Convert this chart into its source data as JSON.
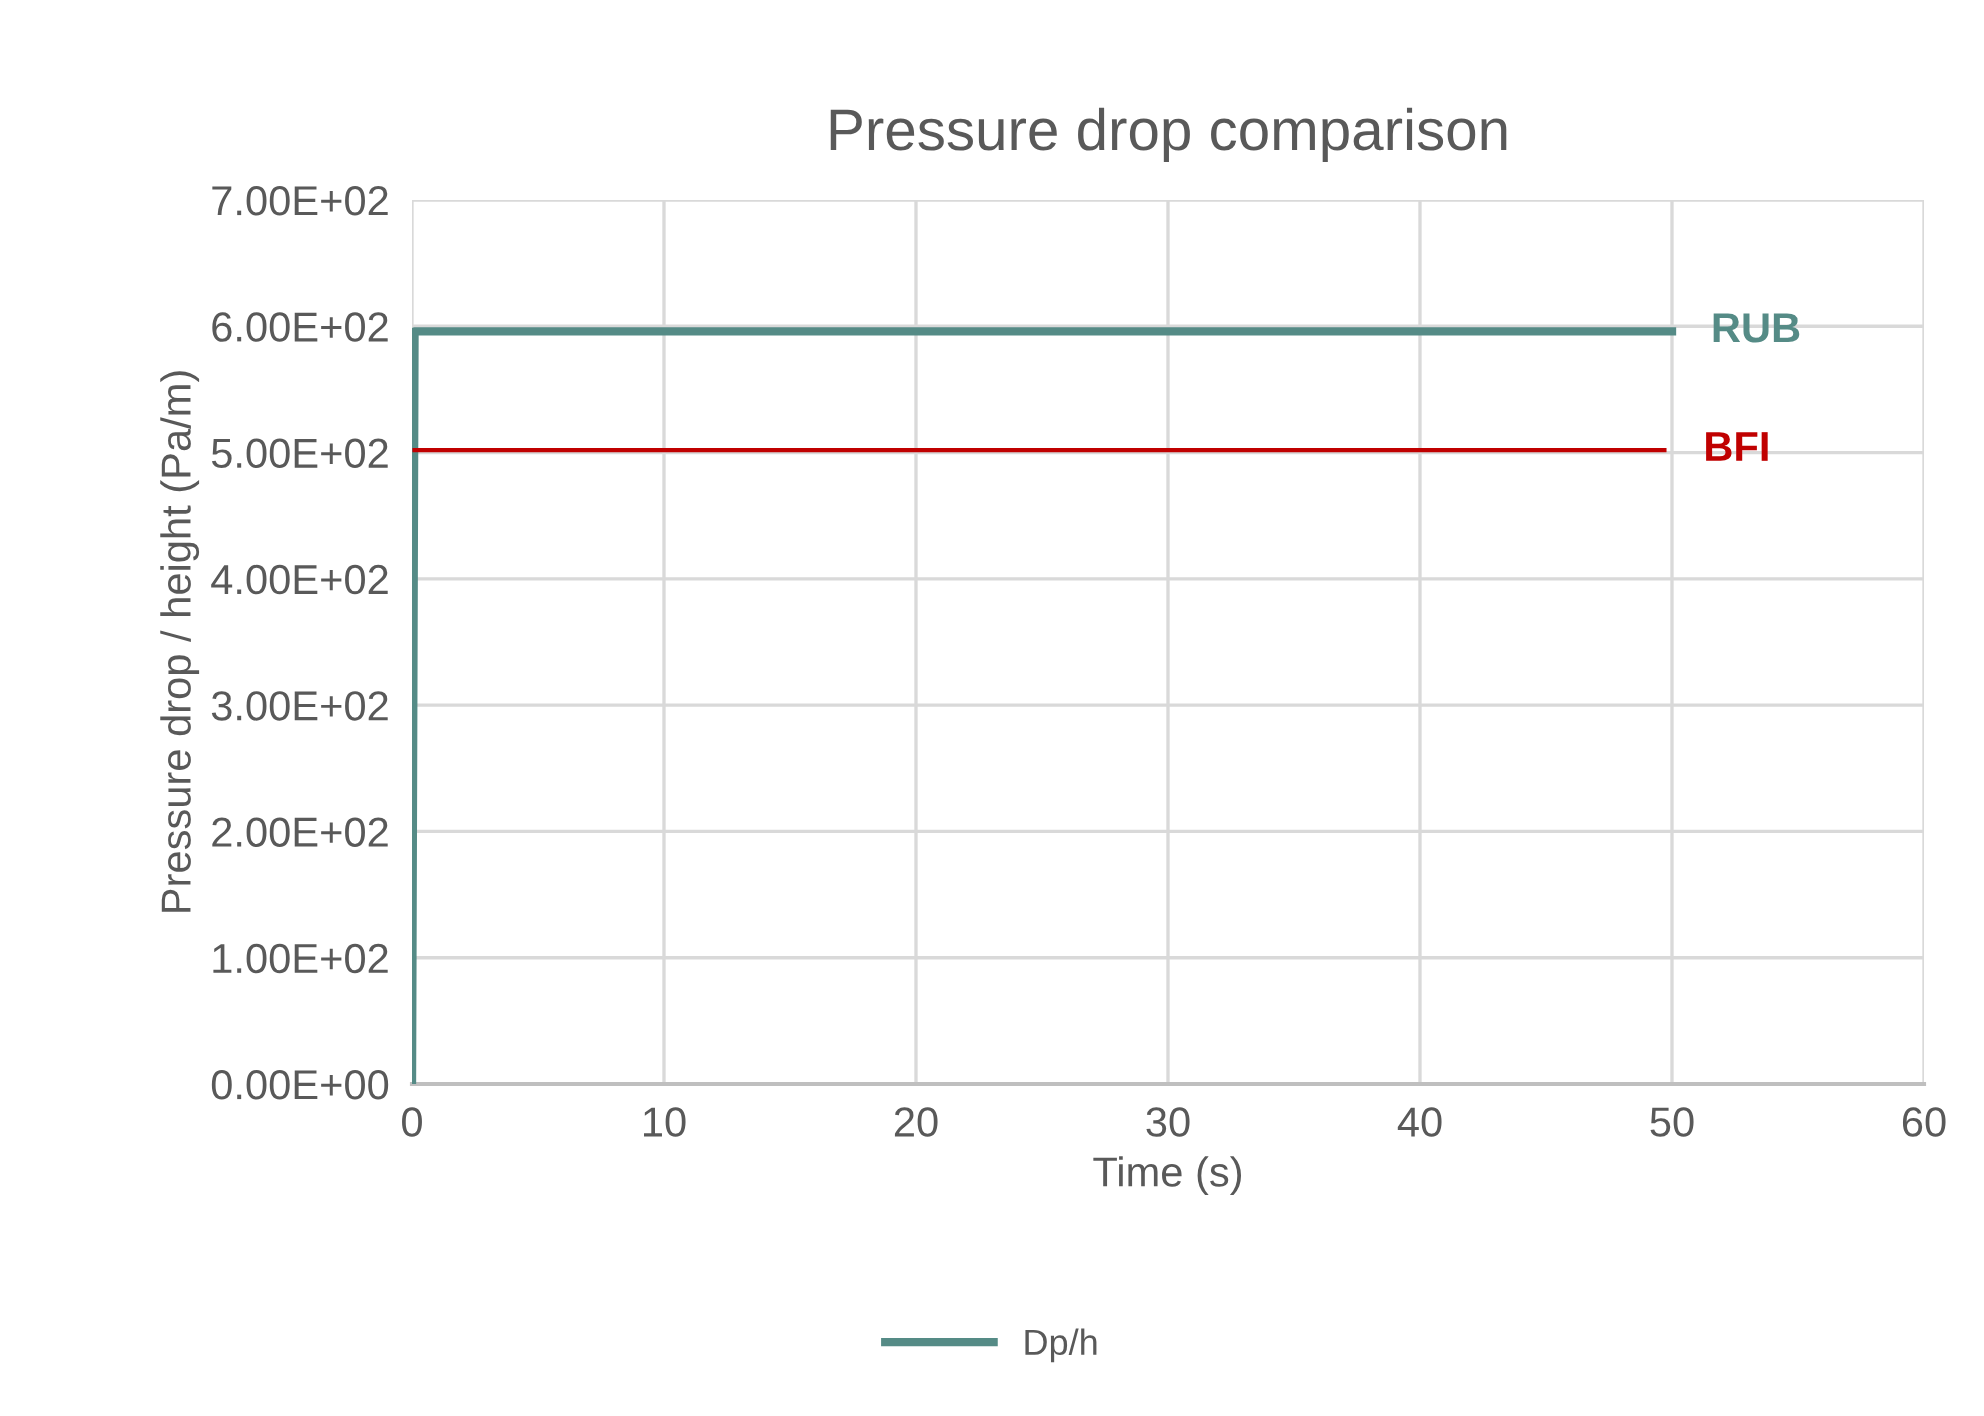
{
  "chart_data": {
    "type": "line",
    "title": "Pressure drop comparison",
    "xlabel": "Time (s)",
    "ylabel": "Pressure drop / height (Pa/m)",
    "series": [
      {
        "name": "Dp/h",
        "color": "#558b86",
        "x": [
          0,
          0.1,
          50
        ],
        "values": [
          0,
          596,
          596
        ]
      },
      {
        "color": "#c00000",
        "x": [
          0.1,
          49.7
        ],
        "values": [
          502,
          502
        ]
      }
    ],
    "annotations": [
      {
        "text": "RUB",
        "x": 50,
        "y": 596
      },
      {
        "text": "BFI",
        "x": 49.7,
        "y": 502
      }
    ],
    "xlim": [
      0,
      60
    ],
    "xticks": [
      0,
      10,
      20,
      30,
      40,
      50,
      60
    ],
    "ylim": [
      0,
      700
    ],
    "yticks": [
      {
        "value": 0,
        "label": "0.00E+00"
      },
      {
        "value": 100,
        "label": "1.00E+02"
      },
      {
        "value": 200,
        "label": "2.00E+02"
      },
      {
        "value": 300,
        "label": "3.00E+02"
      },
      {
        "value": 400,
        "label": "4.00E+02"
      },
      {
        "value": 500,
        "label": "5.00E+02"
      },
      {
        "value": 600,
        "label": "6.00E+02"
      },
      {
        "value": 700,
        "label": "7.00E+02"
      }
    ],
    "grid": true,
    "legend": "bottom",
    "marker": "none",
    "line_style": "solid"
  }
}
